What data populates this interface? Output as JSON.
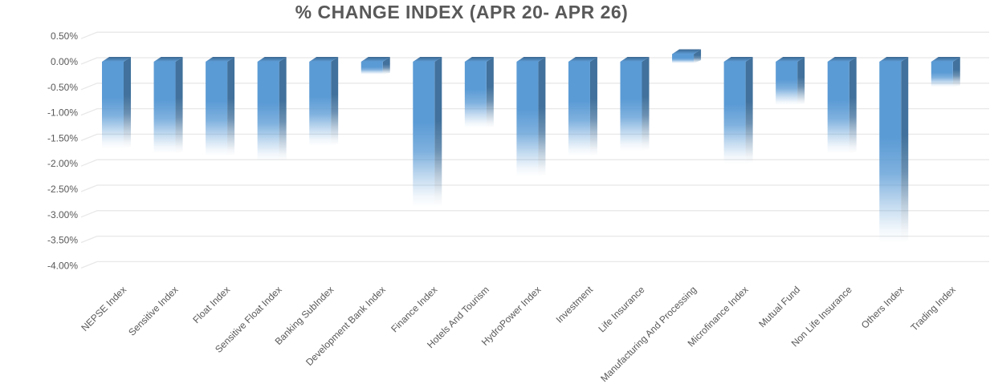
{
  "chart_data": {
    "type": "bar",
    "title": "% CHANGE INDEX (APR 20- APR 26)",
    "categories": [
      "NEPSE Index",
      "Sensitive Index",
      "Float Index",
      "Sensitive Float Index",
      "Banking SubIndex",
      "Development Bank Index",
      "Finance Index",
      "Hotels And Tourism",
      "HydroPower Index",
      "Investment",
      "Life Insurance",
      "Manufacturing And Processing",
      "Microfinance Index",
      "Mutual Fund",
      "Non Life Insurance",
      "Others Index",
      "Trading Index"
    ],
    "values": [
      -1.7,
      -1.8,
      -1.85,
      -1.95,
      -1.65,
      -0.25,
      -2.85,
      -1.3,
      -2.25,
      -1.85,
      -1.75,
      0.15,
      -2.0,
      -0.85,
      -1.8,
      -3.55,
      -0.5
    ],
    "value_unit": "%",
    "xlabel": "",
    "ylabel": "",
    "ylim": [
      -4.0,
      0.5
    ],
    "ytick_step": 0.5,
    "ytick_labels": [
      "0.50%",
      "0.00%",
      "-0.50%",
      "-1.00%",
      "-1.50%",
      "-2.00%",
      "-2.50%",
      "-3.00%",
      "-3.50%",
      "-4.00%"
    ],
    "grid": true,
    "legend": false,
    "bar_style": "3d-gradient-fade",
    "x_label_rotation_deg": -45,
    "colors": {
      "bar_front": "#5B9BD5",
      "bar_side": "#41719C",
      "bar_top_back": "#3A6790",
      "bar_top_front": "#5E9CD6",
      "gridline": "#E8E8E8",
      "axis_text": "#595959",
      "title_text": "#595959",
      "background": "#FFFFFF"
    }
  }
}
